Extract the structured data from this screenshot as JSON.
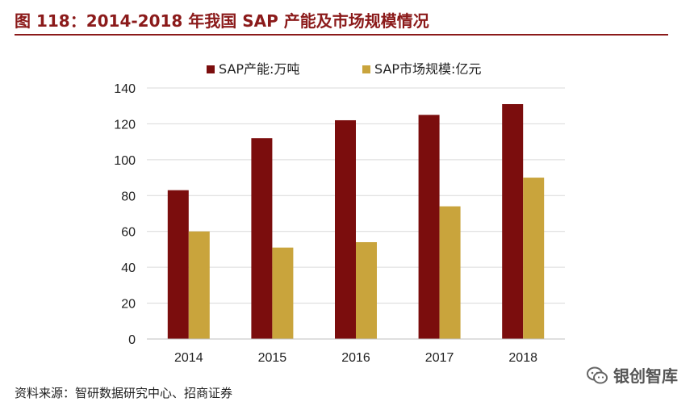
{
  "header": {
    "title": "图 118：2014-2018 年我国 SAP 产能及市场规模情况"
  },
  "footer": {
    "source": "资料来源：智研数据研究中心、招商证券",
    "watermark": "银创智库"
  },
  "colors": {
    "title": "#8b1a1a",
    "series1": "#7b0d0d",
    "series2": "#c9a43c"
  },
  "chart_data": {
    "type": "bar",
    "title": "",
    "xlabel": "",
    "ylabel": "",
    "categories": [
      "2014",
      "2015",
      "2016",
      "2017",
      "2018"
    ],
    "series": [
      {
        "name": "SAP产能:万吨",
        "values": [
          83,
          112,
          122,
          125,
          131
        ]
      },
      {
        "name": "SAP市场规模:亿元",
        "values": [
          60,
          51,
          54,
          74,
          90
        ]
      }
    ],
    "ylim": [
      0,
      140
    ],
    "yticks": [
      0,
      20,
      40,
      60,
      80,
      100,
      120,
      140
    ],
    "grid": true,
    "legend_position": "top"
  }
}
